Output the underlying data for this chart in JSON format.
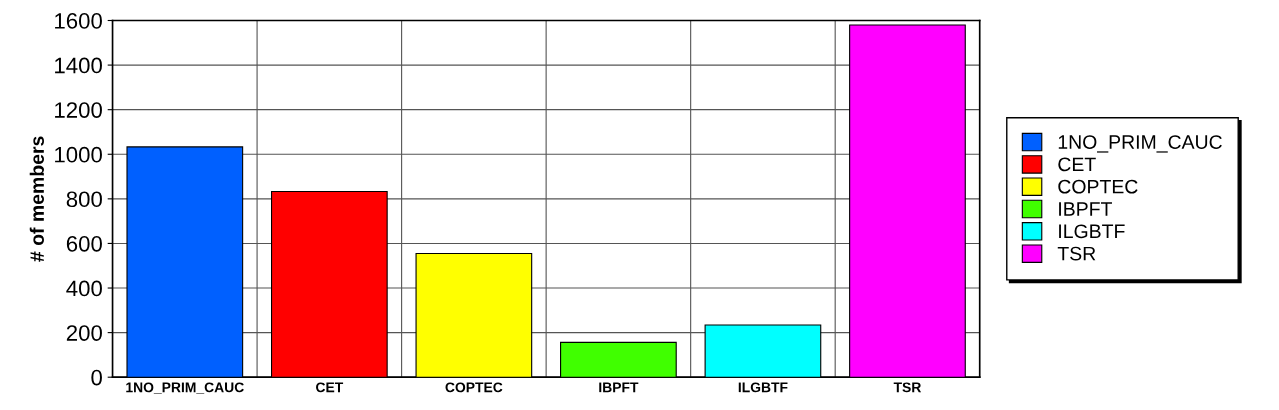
{
  "chart_data": {
    "type": "bar",
    "ylabel": "# of members",
    "categories": [
      "1NO_PRIM_CAUC",
      "CET",
      "COPTEC",
      "IBPFT",
      "ILGBTF",
      "TSR"
    ],
    "series": [
      {
        "name": "1NO_PRIM_CAUC",
        "color": "#0060ff",
        "values": [
          1033,
          null,
          null,
          null,
          null,
          null
        ]
      },
      {
        "name": "CET",
        "color": "#ff0000",
        "values": [
          null,
          833,
          null,
          null,
          null,
          null
        ]
      },
      {
        "name": "COPTEC",
        "color": "#ffff00",
        "values": [
          null,
          null,
          555,
          null,
          null,
          null
        ]
      },
      {
        "name": "IBPFT",
        "color": "#40ff00",
        "values": [
          null,
          null,
          null,
          156,
          null,
          null
        ]
      },
      {
        "name": "ILGBTF",
        "color": "#00ffff",
        "values": [
          null,
          null,
          null,
          null,
          234,
          null
        ]
      },
      {
        "name": "TSR",
        "color": "#ff00ff",
        "values": [
          null,
          null,
          null,
          null,
          null,
          1580
        ]
      }
    ],
    "ylim": [
      0,
      1600
    ],
    "yticks": [
      0,
      200,
      400,
      600,
      800,
      1000,
      1200,
      1400,
      1600
    ],
    "grid": true,
    "legend": "right"
  }
}
